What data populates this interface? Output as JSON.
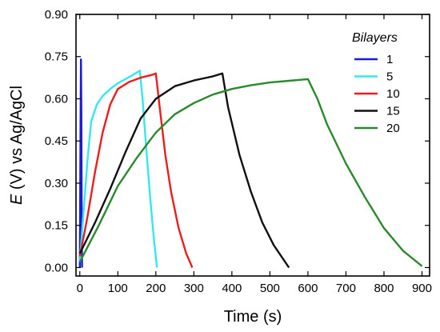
{
  "chart_data": {
    "type": "line",
    "xlabel": "Time (s)",
    "ylabel_italic": "E",
    "ylabel_rest": " (V) vs Ag/AgCl",
    "xlim": [
      -10,
      920
    ],
    "ylim": [
      -0.03,
      0.9
    ],
    "xticks": [
      0,
      100,
      200,
      300,
      400,
      500,
      600,
      700,
      800,
      900
    ],
    "xtick_labels": [
      "0",
      "100",
      "200",
      "300",
      "400",
      "500",
      "600",
      "700",
      "800",
      "900"
    ],
    "yticks": [
      0.0,
      0.15,
      0.3,
      0.45,
      0.6,
      0.75,
      0.9
    ],
    "ytick_labels": [
      "0.00",
      "0.15",
      "0.30",
      "0.45",
      "0.60",
      "0.75",
      "0.90"
    ],
    "grid": false,
    "legend_title": "Bilayers",
    "legend_position": "top-right",
    "series": [
      {
        "name": "1",
        "color": "#1a1adf",
        "x": [
          0,
          2,
          3,
          4,
          5,
          6
        ],
        "y": [
          0.0,
          0.52,
          0.74,
          0.55,
          0.2,
          0.0
        ]
      },
      {
        "name": "5",
        "color": "#33e8ee",
        "x": [
          0,
          10,
          20,
          30,
          45,
          60,
          80,
          100,
          120,
          140,
          158,
          165,
          175,
          185,
          195,
          203
        ],
        "y": [
          0.02,
          0.2,
          0.38,
          0.52,
          0.58,
          0.61,
          0.635,
          0.655,
          0.67,
          0.685,
          0.7,
          0.6,
          0.42,
          0.25,
          0.1,
          0.0
        ]
      },
      {
        "name": "10",
        "color": "#ee1c1c",
        "x": [
          0,
          20,
          40,
          60,
          80,
          100,
          130,
          160,
          190,
          200,
          210,
          225,
          240,
          260,
          280,
          296
        ],
        "y": [
          0.04,
          0.18,
          0.34,
          0.48,
          0.58,
          0.635,
          0.66,
          0.675,
          0.685,
          0.69,
          0.57,
          0.4,
          0.27,
          0.14,
          0.05,
          0.0
        ]
      },
      {
        "name": "15",
        "color": "#111111",
        "x": [
          0,
          40,
          80,
          120,
          160,
          200,
          250,
          300,
          350,
          375,
          390,
          420,
          450,
          480,
          510,
          550
        ],
        "y": [
          0.05,
          0.16,
          0.28,
          0.41,
          0.53,
          0.6,
          0.645,
          0.665,
          0.68,
          0.69,
          0.57,
          0.4,
          0.27,
          0.16,
          0.08,
          0.0
        ]
      },
      {
        "name": "20",
        "color": "#2a8a2a",
        "x": [
          0,
          50,
          100,
          150,
          200,
          250,
          300,
          350,
          400,
          450,
          500,
          550,
          600,
          625,
          650,
          700,
          750,
          800,
          850,
          900
        ],
        "y": [
          0.02,
          0.15,
          0.29,
          0.39,
          0.48,
          0.545,
          0.585,
          0.615,
          0.635,
          0.648,
          0.658,
          0.664,
          0.67,
          0.6,
          0.51,
          0.37,
          0.25,
          0.14,
          0.06,
          0.005
        ]
      }
    ]
  }
}
